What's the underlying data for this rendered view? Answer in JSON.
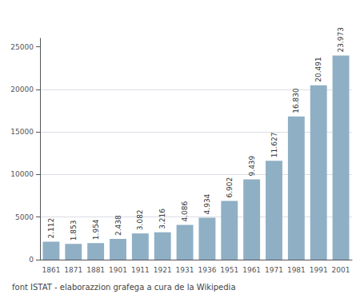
{
  "chart_data": {
    "type": "bar",
    "categories": [
      "1861",
      "1871",
      "1881",
      "1901",
      "1911",
      "1921",
      "1931",
      "1936",
      "1951",
      "1961",
      "1971",
      "1981",
      "1991",
      "2001"
    ],
    "values": [
      2112,
      1853,
      1954,
      2438,
      3082,
      3216,
      4086,
      4934,
      6902,
      9439,
      11627,
      16830,
      20491,
      23973
    ],
    "value_labels": [
      "2.112",
      "1.853",
      "1.954",
      "2.438",
      "3.082",
      "3.216",
      "4.086",
      "4.934",
      "6.902",
      "9.439",
      "11.627",
      "16.830",
      "20.491",
      "23.973"
    ],
    "color": "#8fafc5",
    "ylim": [
      0,
      26000
    ],
    "yticks": [
      0,
      5000,
      10000,
      15000,
      20000,
      25000
    ],
    "grid": true,
    "data_labels": true,
    "caption": "font ISTAT - elaborazzion grafega a cura de la Wikipedia"
  }
}
